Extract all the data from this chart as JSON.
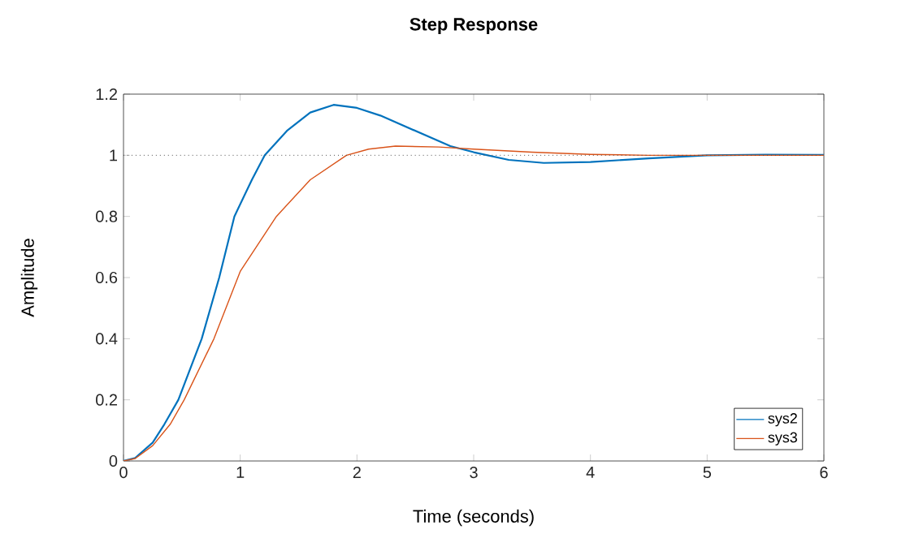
{
  "chart_data": {
    "type": "line",
    "title": "Step Response",
    "xlabel": "Time (seconds)",
    "ylabel": "Amplitude",
    "xlim": [
      0,
      6
    ],
    "ylim": [
      0,
      1.2
    ],
    "xticks": [
      0,
      1,
      2,
      3,
      4,
      5,
      6
    ],
    "yticks": [
      0,
      0.2,
      0.4,
      0.6,
      0.8,
      1,
      1.2
    ],
    "series": [
      {
        "name": "sys2",
        "color": "#0072bd",
        "x": [
          0,
          0.1,
          0.25,
          0.35,
          0.47,
          0.67,
          0.82,
          0.95,
          1.1,
          1.21,
          1.4,
          1.6,
          1.8,
          2.0,
          2.2,
          2.5,
          2.8,
          3.0,
          3.3,
          3.6,
          4.0,
          4.5,
          5.0,
          5.5,
          6.0
        ],
        "values": [
          0,
          0.01,
          0.06,
          0.12,
          0.2,
          0.4,
          0.6,
          0.8,
          0.92,
          1.0,
          1.08,
          1.14,
          1.165,
          1.155,
          1.13,
          1.08,
          1.03,
          1.01,
          0.985,
          0.975,
          0.978,
          0.99,
          1.0,
          1.002,
          1.001
        ]
      },
      {
        "name": "sys3",
        "color": "#d95319",
        "x": [
          0,
          0.1,
          0.25,
          0.4,
          0.52,
          0.775,
          1.0,
          1.31,
          1.6,
          1.91,
          2.1,
          2.33,
          2.7,
          3.0,
          3.5,
          4.0,
          4.5,
          5.0,
          6.0
        ],
        "values": [
          0,
          0.008,
          0.05,
          0.12,
          0.2,
          0.4,
          0.62,
          0.8,
          0.92,
          1.0,
          1.02,
          1.03,
          1.027,
          1.02,
          1.01,
          1.003,
          1.0,
          1.0,
          1.0
        ]
      }
    ],
    "ref_lines": [
      {
        "axis": "y",
        "value": 1,
        "line_style": "dotted"
      }
    ],
    "legend": "bottom right",
    "grid": false
  }
}
